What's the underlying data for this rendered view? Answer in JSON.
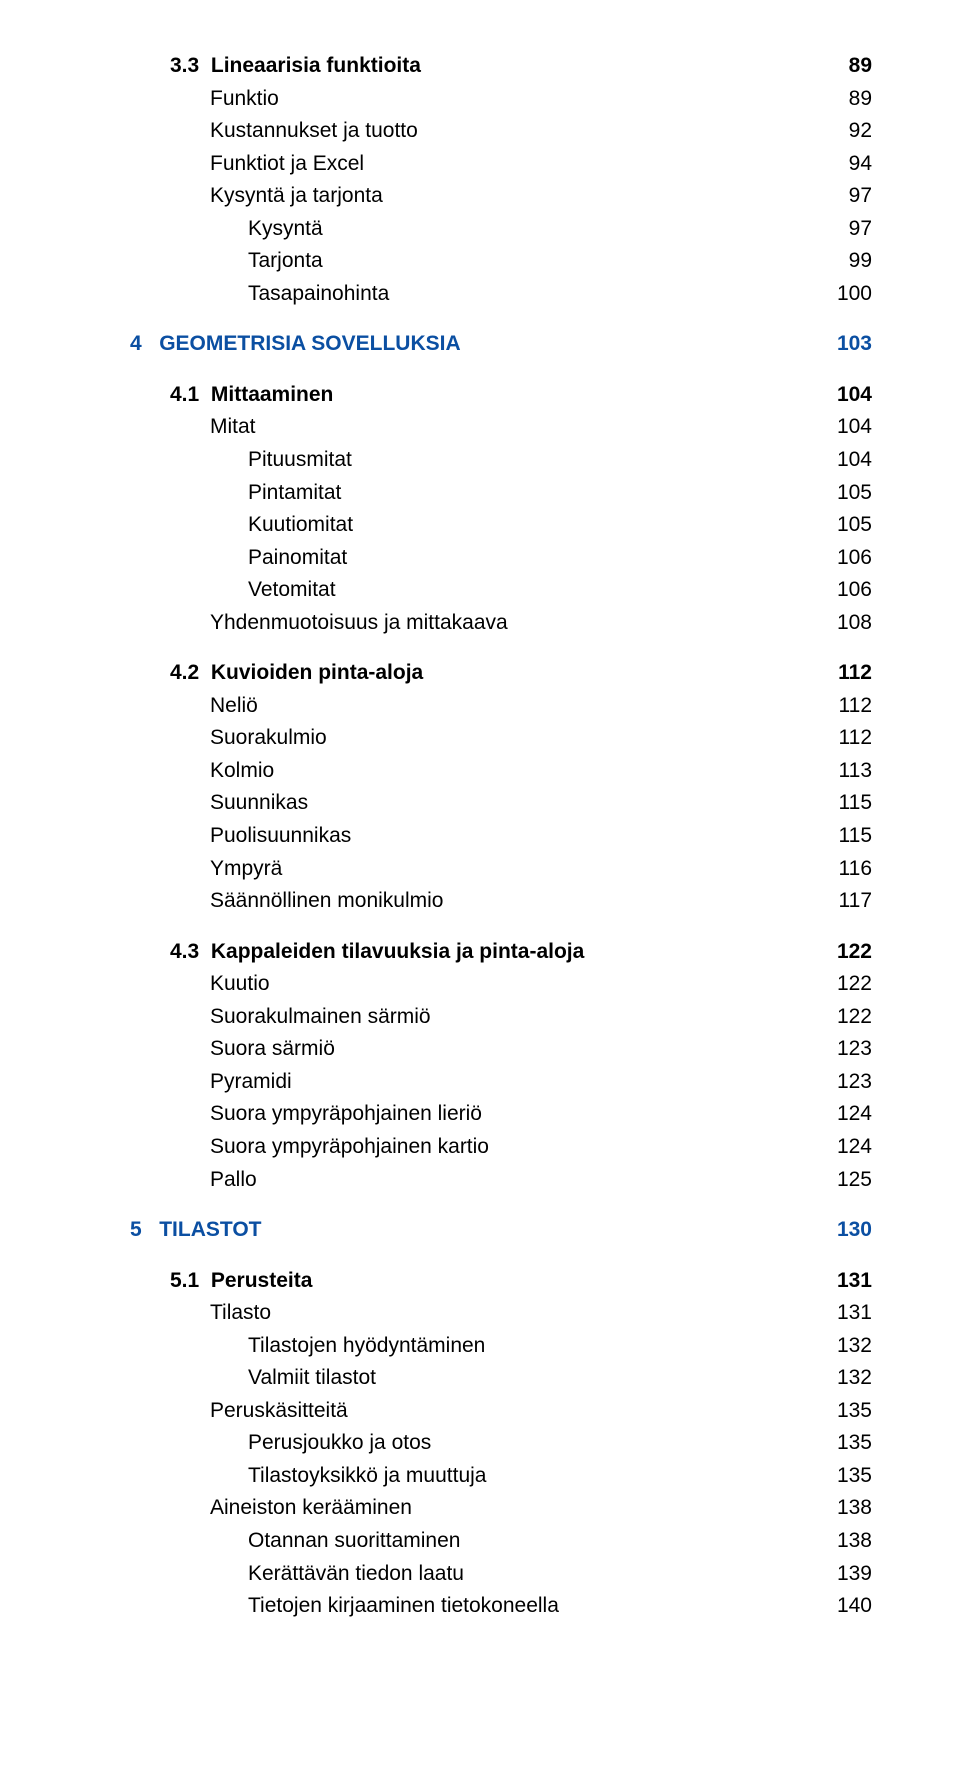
{
  "colors": {
    "chapter": "#0b4fa2",
    "text": "#000000",
    "background": "#ffffff"
  },
  "fonts": {
    "base_size_pt": 16,
    "bold_weight": 700,
    "normal_weight": 400
  },
  "toc": [
    {
      "level": "sub",
      "num": "3.3",
      "title": "Lineaarisia funktioita",
      "page": "89"
    },
    {
      "level": "item2",
      "title": "Funktio",
      "page": "89"
    },
    {
      "level": "item2",
      "title": "Kustannukset ja tuotto",
      "page": "92"
    },
    {
      "level": "item2",
      "title": "Funktiot ja Excel",
      "page": "94"
    },
    {
      "level": "item2",
      "title": "Kysyntä ja tarjonta",
      "page": "97"
    },
    {
      "level": "item3",
      "title": "Kysyntä",
      "page": "97"
    },
    {
      "level": "item3",
      "title": "Tarjonta",
      "page": "99"
    },
    {
      "level": "item3",
      "title": "Tasapainohinta",
      "page": "100"
    },
    {
      "level": "gap"
    },
    {
      "level": "chapter",
      "num": "4",
      "title": "GEOMETRISIA SOVELLUKSIA",
      "page": "103"
    },
    {
      "level": "gap"
    },
    {
      "level": "sub",
      "num": "4.1",
      "title": "Mittaaminen",
      "page": "104"
    },
    {
      "level": "item2",
      "title": "Mitat",
      "page": "104"
    },
    {
      "level": "item3",
      "title": "Pituusmitat",
      "page": "104"
    },
    {
      "level": "item3",
      "title": "Pintamitat",
      "page": "105"
    },
    {
      "level": "item3",
      "title": "Kuutiomitat",
      "page": "105"
    },
    {
      "level": "item3",
      "title": "Painomitat",
      "page": "106"
    },
    {
      "level": "item3",
      "title": "Vetomitat",
      "page": "106"
    },
    {
      "level": "item2",
      "title": "Yhdenmuotoisuus ja mittakaava",
      "page": "108"
    },
    {
      "level": "gap"
    },
    {
      "level": "sub",
      "num": "4.2",
      "title": "Kuvioiden pinta-aloja",
      "page": "112"
    },
    {
      "level": "item2",
      "title": "Neliö",
      "page": "112"
    },
    {
      "level": "item2",
      "title": "Suorakulmio",
      "page": "112"
    },
    {
      "level": "item2",
      "title": "Kolmio",
      "page": "113"
    },
    {
      "level": "item2",
      "title": "Suunnikas",
      "page": "115"
    },
    {
      "level": "item2",
      "title": "Puolisuunnikas",
      "page": "115"
    },
    {
      "level": "item2",
      "title": "Ympyrä",
      "page": "116"
    },
    {
      "level": "item2",
      "title": "Säännöllinen monikulmio",
      "page": "117"
    },
    {
      "level": "gap"
    },
    {
      "level": "sub",
      "num": "4.3",
      "title": "Kappaleiden tilavuuksia ja pinta-aloja",
      "page": "122"
    },
    {
      "level": "item2",
      "title": "Kuutio",
      "page": "122"
    },
    {
      "level": "item2",
      "title": "Suorakulmainen särmiö",
      "page": "122"
    },
    {
      "level": "item2",
      "title": "Suora särmiö",
      "page": "123"
    },
    {
      "level": "item2",
      "title": "Pyramidi",
      "page": "123"
    },
    {
      "level": "item2",
      "title": "Suora ympyräpohjainen lieriö",
      "page": "124"
    },
    {
      "level": "item2",
      "title": "Suora ympyräpohjainen kartio",
      "page": "124"
    },
    {
      "level": "item2",
      "title": "Pallo",
      "page": "125"
    },
    {
      "level": "gap"
    },
    {
      "level": "chapter",
      "num": "5",
      "title": "TILASTOT",
      "page": "130"
    },
    {
      "level": "gap"
    },
    {
      "level": "sub",
      "num": "5.1",
      "title": "Perusteita",
      "page": "131"
    },
    {
      "level": "item2",
      "title": "Tilasto",
      "page": "131"
    },
    {
      "level": "item3",
      "title": "Tilastojen hyödyntäminen",
      "page": "132"
    },
    {
      "level": "item3",
      "title": "Valmiit tilastot",
      "page": "132"
    },
    {
      "level": "item2",
      "title": "Peruskäsitteitä",
      "page": "135"
    },
    {
      "level": "item3",
      "title": "Perusjoukko ja otos",
      "page": "135"
    },
    {
      "level": "item3",
      "title": "Tilastoyksikkö ja muuttuja",
      "page": "135"
    },
    {
      "level": "item2",
      "title": "Aineiston kerääminen",
      "page": "138"
    },
    {
      "level": "item3",
      "title": "Otannan suorittaminen",
      "page": "138"
    },
    {
      "level": "item3",
      "title": "Kerättävän tiedon laatu",
      "page": "139"
    },
    {
      "level": "item3",
      "title": "Tietojen kirjaaminen tietokoneella",
      "page": "140"
    }
  ]
}
